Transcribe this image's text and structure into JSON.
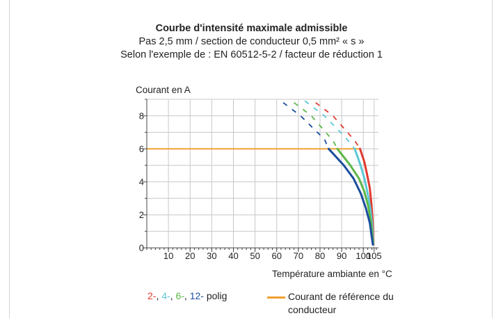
{
  "chart_data": {
    "type": "line",
    "title": "Courbe d'intensité maximale admissible",
    "subtitles": [
      "Pas 2,5 mm / section de conducteur  0,5 mm² « s »",
      "Selon l'exemple de : EN 60512-5-2 / facteur de réduction 1"
    ],
    "ylabel": "Courant en A",
    "xlabel": "Température ambiante en °C",
    "xlim": [
      0,
      107
    ],
    "ylim": [
      0,
      9
    ],
    "x_ticks": [
      "10",
      "20",
      "30",
      "40",
      "50",
      "60",
      "70",
      "80",
      "90",
      "100",
      "105"
    ],
    "y_ticks": [
      "0",
      "2",
      "4",
      "6",
      "8"
    ],
    "grid": true,
    "series": [
      {
        "name": "2-",
        "color": "#e03a2e",
        "dashed": [
          [
            78,
            8.8
          ],
          [
            86,
            8.0
          ],
          [
            92,
            7.1
          ],
          [
            96,
            6.5
          ],
          [
            98.5,
            6.0
          ]
        ],
        "solid": [
          [
            98.5,
            6.0
          ],
          [
            100.5,
            5.2
          ],
          [
            102,
            4.3
          ],
          [
            103,
            3.6
          ],
          [
            103.8,
            2.6
          ],
          [
            104.3,
            1.6
          ],
          [
            104.7,
            0.2
          ]
        ]
      },
      {
        "name": "4-",
        "color": "#5cc8d6",
        "dashed": [
          [
            73,
            8.9
          ],
          [
            82,
            8.0
          ],
          [
            88,
            7.2
          ],
          [
            93,
            6.5
          ],
          [
            96,
            6.0
          ]
        ],
        "solid": [
          [
            96,
            6.0
          ],
          [
            98.5,
            5.1
          ],
          [
            100.5,
            4.2
          ],
          [
            102,
            3.3
          ],
          [
            103.2,
            2.4
          ],
          [
            104,
            1.5
          ],
          [
            104.6,
            0.2
          ]
        ]
      },
      {
        "name": "6-",
        "color": "#5cb848",
        "dashed": [
          [
            68,
            8.8
          ],
          [
            76,
            8.0
          ],
          [
            82,
            7.1
          ],
          [
            86,
            6.5
          ],
          [
            88,
            6.0
          ]
        ],
        "solid": [
          [
            88,
            6.0
          ],
          [
            94,
            5.0
          ],
          [
            98,
            4.2
          ],
          [
            100.5,
            3.4
          ],
          [
            102.3,
            2.5
          ],
          [
            103.6,
            1.5
          ],
          [
            104.5,
            0.2
          ]
        ]
      },
      {
        "name": "12-",
        "color": "#1a4d9c",
        "dashed": [
          [
            63,
            8.8
          ],
          [
            71,
            8.0
          ],
          [
            78,
            7.1
          ],
          [
            82,
            6.6
          ],
          [
            84,
            6.0
          ]
        ],
        "solid": [
          [
            84,
            6.0
          ],
          [
            91,
            5.0
          ],
          [
            95.5,
            4.2
          ],
          [
            98.8,
            3.3
          ],
          [
            101.2,
            2.4
          ],
          [
            103,
            1.5
          ],
          [
            104.4,
            0.2
          ]
        ]
      }
    ],
    "reference_line": {
      "label": "Courant de référence du conducteur",
      "value": 6,
      "x_range": [
        0,
        98.5
      ],
      "color": "#f0a030"
    },
    "legend": {
      "series_suffix": "polig",
      "series_entries": [
        {
          "text": "2-",
          "color": "#e03a2e"
        },
        {
          "text": "4-",
          "color": "#5cc8d6"
        },
        {
          "text": "6-",
          "color": "#5cb848"
        },
        {
          "text": "12-",
          "color": "#1a4d9c"
        }
      ],
      "ref_line1": "Courant de référence du",
      "ref_line2": "conducteur"
    }
  }
}
